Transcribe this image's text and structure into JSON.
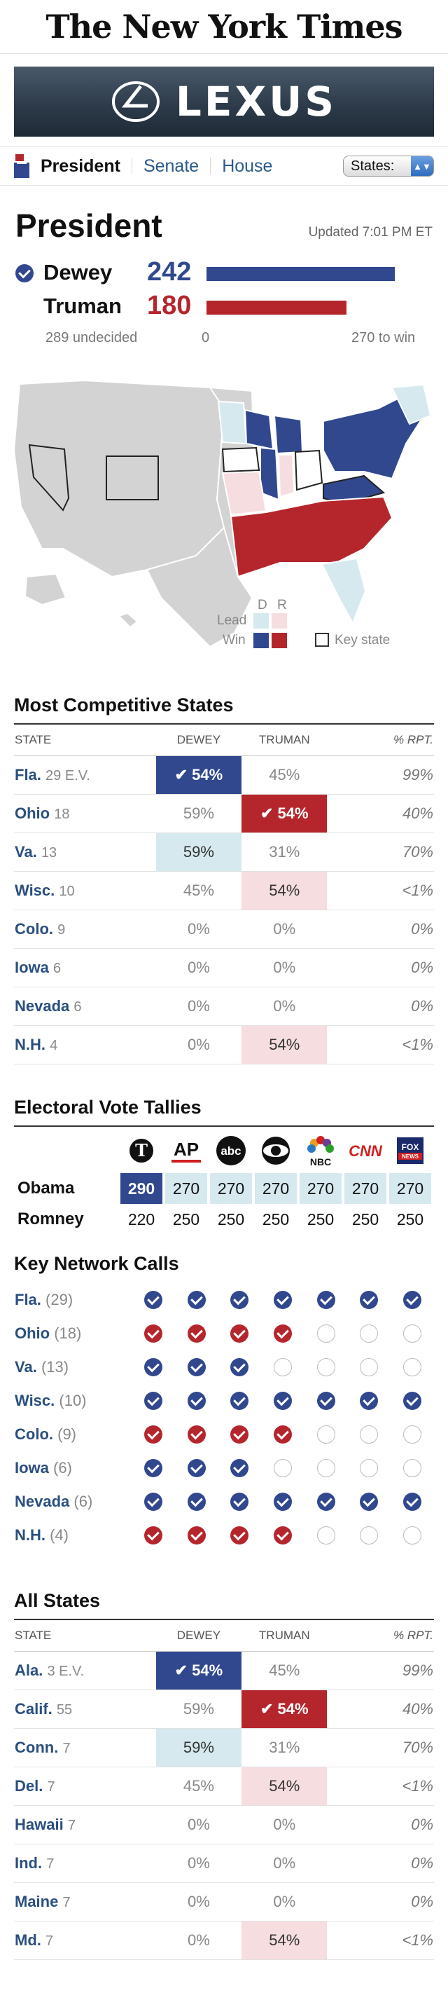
{
  "masthead": {
    "title": "The New York Times"
  },
  "ad": {
    "brand": "LEXUS"
  },
  "nav": {
    "tabs": [
      "President",
      "Senate",
      "House"
    ],
    "states_label": "States:"
  },
  "president": {
    "heading": "President",
    "updated": "Updated 7:01 PM ET",
    "candidates": [
      {
        "name": "Dewey",
        "ev": "242",
        "party": "D",
        "called": true
      },
      {
        "name": "Truman",
        "ev": "180",
        "party": "R",
        "called": false
      }
    ],
    "undecided": "289 undecided",
    "zero": "0",
    "to_win": "270 to win",
    "ev_to_win": 270,
    "ev_max": 540
  },
  "map_legend": {
    "d": "D",
    "r": "R",
    "lead": "Lead",
    "win": "Win",
    "key_state": "Key state"
  },
  "colors": {
    "dem_win": "#31488f",
    "dem_lead": "#d6e9ef",
    "rep_win": "#b5262c",
    "rep_lead": "#f6dde0",
    "undecided": "#d3d3d3"
  },
  "competitive": {
    "heading": "Most Competitive States",
    "columns": [
      "STATE",
      "DEWEY",
      "TRUMAN",
      "% RPT."
    ],
    "rows": [
      {
        "state": "Fla.",
        "ev": "29 E.V.",
        "d": "54%",
        "r": "45%",
        "rpt": "99%",
        "dc": "win-d",
        "rc": ""
      },
      {
        "state": "Ohio",
        "ev": "18",
        "d": "59%",
        "r": "54%",
        "rpt": "40%",
        "dc": "",
        "rc": "win-r"
      },
      {
        "state": "Va.",
        "ev": "13",
        "d": "59%",
        "r": "31%",
        "rpt": "70%",
        "dc": "lead-d",
        "rc": ""
      },
      {
        "state": "Wisc.",
        "ev": "10",
        "d": "45%",
        "r": "54%",
        "rpt": "<1%",
        "dc": "",
        "rc": "lead-r"
      },
      {
        "state": "Colo.",
        "ev": "9",
        "d": "0%",
        "r": "0%",
        "rpt": "0%",
        "dc": "",
        "rc": ""
      },
      {
        "state": "Iowa",
        "ev": "6",
        "d": "0%",
        "r": "0%",
        "rpt": "0%",
        "dc": "",
        "rc": ""
      },
      {
        "state": "Nevada",
        "ev": "6",
        "d": "0%",
        "r": "0%",
        "rpt": "0%",
        "dc": "",
        "rc": ""
      },
      {
        "state": "N.H.",
        "ev": "4",
        "d": "0%",
        "r": "54%",
        "rpt": "<1%",
        "dc": "",
        "rc": "lead-r"
      }
    ]
  },
  "tallies": {
    "heading": "Electoral Vote Tallies",
    "networks": [
      "NYT",
      "AP",
      "abc",
      "CBS",
      "NBC",
      "CNN",
      "FOX NEWS"
    ],
    "rows": [
      {
        "name": "Obama",
        "values": [
          "290",
          "270",
          "270",
          "270",
          "270",
          "270",
          "270"
        ]
      },
      {
        "name": "Romney",
        "values": [
          "220",
          "250",
          "250",
          "250",
          "250",
          "250",
          "250"
        ]
      }
    ]
  },
  "calls": {
    "heading": "Key Network Calls",
    "rows": [
      {
        "state": "Fla.",
        "ev": "(29)",
        "calls": [
          "d",
          "d",
          "d",
          "d",
          "d",
          "d",
          "d"
        ]
      },
      {
        "state": "Ohio",
        "ev": "(18)",
        "calls": [
          "r",
          "r",
          "r",
          "r",
          "e",
          "e",
          "e"
        ]
      },
      {
        "state": "Va.",
        "ev": "(13)",
        "calls": [
          "d",
          "d",
          "d",
          "e",
          "e",
          "e",
          "e"
        ]
      },
      {
        "state": "Wisc.",
        "ev": "(10)",
        "calls": [
          "d",
          "d",
          "d",
          "d",
          "d",
          "d",
          "d"
        ]
      },
      {
        "state": "Colo.",
        "ev": "(9)",
        "calls": [
          "r",
          "r",
          "r",
          "r",
          "e",
          "e",
          "e"
        ]
      },
      {
        "state": "Iowa",
        "ev": "(6)",
        "calls": [
          "d",
          "d",
          "d",
          "e",
          "e",
          "e",
          "e"
        ]
      },
      {
        "state": "Nevada",
        "ev": "(6)",
        "calls": [
          "d",
          "d",
          "d",
          "d",
          "d",
          "d",
          "d"
        ]
      },
      {
        "state": "N.H.",
        "ev": "(4)",
        "calls": [
          "r",
          "r",
          "r",
          "r",
          "e",
          "e",
          "e"
        ]
      }
    ]
  },
  "all_states": {
    "heading": "All States",
    "columns": [
      "STATE",
      "DEWEY",
      "TRUMAN",
      "% RPT."
    ],
    "rows": [
      {
        "state": "Ala.",
        "ev": "3 E.V.",
        "d": "54%",
        "r": "45%",
        "rpt": "99%",
        "dc": "win-d",
        "rc": ""
      },
      {
        "state": "Calif.",
        "ev": "55",
        "d": "59%",
        "r": "54%",
        "rpt": "40%",
        "dc": "",
        "rc": "win-r"
      },
      {
        "state": "Conn.",
        "ev": "7",
        "d": "59%",
        "r": "31%",
        "rpt": "70%",
        "dc": "lead-d",
        "rc": ""
      },
      {
        "state": "Del.",
        "ev": "7",
        "d": "45%",
        "r": "54%",
        "rpt": "<1%",
        "dc": "",
        "rc": "lead-r"
      },
      {
        "state": "Hawaii",
        "ev": "7",
        "d": "0%",
        "r": "0%",
        "rpt": "0%",
        "dc": "",
        "rc": ""
      },
      {
        "state": "Ind.",
        "ev": "7",
        "d": "0%",
        "r": "0%",
        "rpt": "0%",
        "dc": "",
        "rc": ""
      },
      {
        "state": "Maine",
        "ev": "7",
        "d": "0%",
        "r": "0%",
        "rpt": "0%",
        "dc": "",
        "rc": ""
      },
      {
        "state": "Md.",
        "ev": "7",
        "d": "0%",
        "r": "54%",
        "rpt": "<1%",
        "dc": "",
        "rc": "lead-r"
      }
    ]
  }
}
